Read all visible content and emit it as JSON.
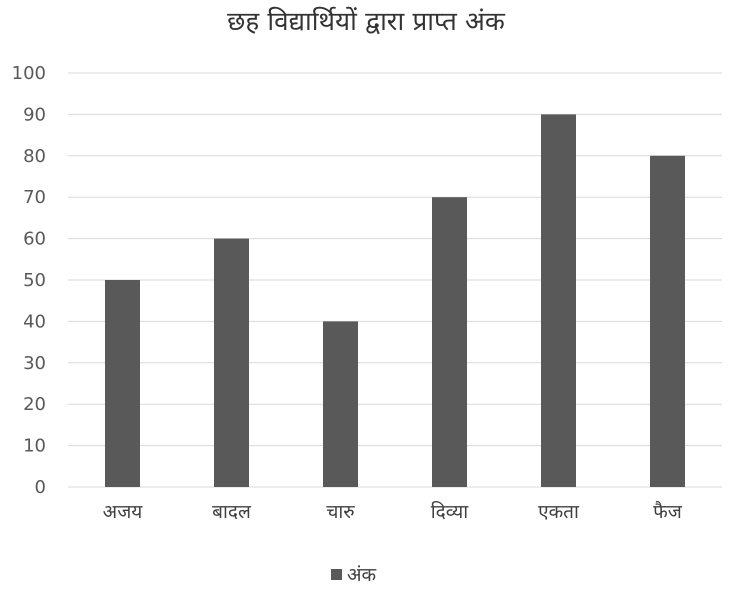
{
  "chart_data": {
    "type": "bar",
    "title": "छह विद्यार्थियों द्वारा प्राप्त अंक",
    "categories": [
      "अजय",
      "बादल",
      "चारु",
      "दिव्या",
      "एकता",
      "फैज"
    ],
    "series": [
      {
        "name": "अंक",
        "values": [
          50,
          60,
          40,
          70,
          90,
          80
        ]
      }
    ],
    "ylim": [
      0,
      100
    ],
    "yticks": [
      0,
      10,
      20,
      30,
      40,
      50,
      60,
      70,
      80,
      90,
      100
    ],
    "grid": true,
    "legend": "bottom",
    "colors": {
      "bar": "#595959",
      "grid": "#d9d9d9",
      "axis": "#d9d9d9"
    }
  }
}
